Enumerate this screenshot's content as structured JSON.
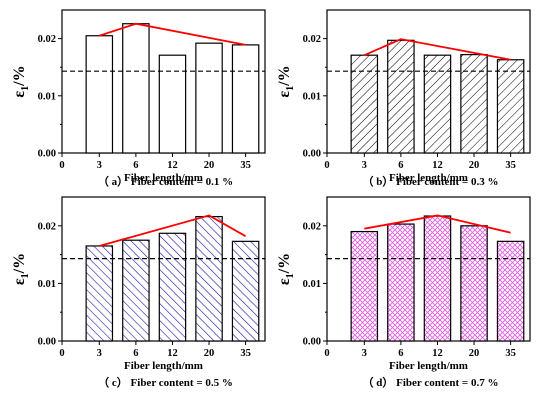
{
  "chart_data": [
    {
      "type": "bar",
      "caption": "（ a） Fiber content = 0.1 %",
      "xlabel": "Fiber length/mm",
      "ylabel": "ε",
      "ylabel_sub": "1",
      "ylabel_unit": "/%",
      "x_ticks": [
        "0",
        "3",
        "6",
        "12",
        "20",
        "35"
      ],
      "categories": [
        "3",
        "6",
        "12",
        "20",
        "35"
      ],
      "values": [
        0.0205,
        0.0226,
        0.0171,
        0.0192,
        0.0189
      ],
      "trend": [
        0.0205,
        0.0226,
        0.0208,
        0.0198,
        0.0189
      ],
      "reference_line": 0.0143,
      "ylim": [
        0,
        0.025
      ],
      "yticks": [
        "0.00",
        "0.01",
        "0.02"
      ],
      "fill": "none",
      "bar_stroke": "#000000",
      "trend_color": "#ff0000"
    },
    {
      "type": "bar",
      "caption": "（ b） Fiber content = 0.3 %",
      "xlabel": "Fiber length/mm",
      "ylabel": "ε",
      "ylabel_sub": "1",
      "ylabel_unit": "/%",
      "x_ticks": [
        "0",
        "3",
        "6",
        "12",
        "20",
        "35"
      ],
      "categories": [
        "3",
        "6",
        "12",
        "20",
        "35"
      ],
      "values": [
        0.0171,
        0.0197,
        0.0171,
        0.0172,
        0.0163
      ],
      "trend": [
        0.0171,
        0.0199,
        0.0187,
        0.0175,
        0.0163
      ],
      "reference_line": 0.0143,
      "ylim": [
        0,
        0.025
      ],
      "yticks": [
        "0.00",
        "0.01",
        "0.02"
      ],
      "fill": "diag-black",
      "bar_stroke": "#000000",
      "trend_color": "#ff0000"
    },
    {
      "type": "bar",
      "caption": "（ c） Fiber content = 0.5 %",
      "xlabel": "Fiber length/mm",
      "ylabel": "ε",
      "ylabel_sub": "1",
      "ylabel_unit": "/%",
      "x_ticks": [
        "0",
        "3",
        "6",
        "12",
        "20",
        "35"
      ],
      "categories": [
        "3",
        "6",
        "12",
        "20",
        "35"
      ],
      "values": [
        0.0165,
        0.0175,
        0.0187,
        0.0216,
        0.0173
      ],
      "trend": [
        0.0165,
        0.0182,
        0.0199,
        0.0218,
        0.0182
      ],
      "reference_line": 0.0143,
      "ylim": [
        0,
        0.025
      ],
      "yticks": [
        "0.00",
        "0.01",
        "0.02"
      ],
      "fill": "diag-blue",
      "bar_stroke": "#000000",
      "trend_color": "#ff0000"
    },
    {
      "type": "bar",
      "caption": "（ d） Fiber content = 0.7 %",
      "xlabel": "Fiber length/mm",
      "ylabel": "ε",
      "ylabel_sub": "1",
      "ylabel_unit": "/%",
      "x_ticks": [
        "0",
        "3",
        "6",
        "12",
        "20",
        "35"
      ],
      "categories": [
        "3",
        "6",
        "12",
        "20",
        "35"
      ],
      "values": [
        0.019,
        0.0203,
        0.0217,
        0.02,
        0.0173
      ],
      "trend": [
        0.0195,
        0.0206,
        0.0218,
        0.0205,
        0.0188
      ],
      "reference_line": 0.0143,
      "ylim": [
        0,
        0.025
      ],
      "yticks": [
        "0.00",
        "0.01",
        "0.02"
      ],
      "fill": "cross-pink",
      "bar_stroke": "#000000",
      "trend_color": "#ff0000"
    }
  ]
}
